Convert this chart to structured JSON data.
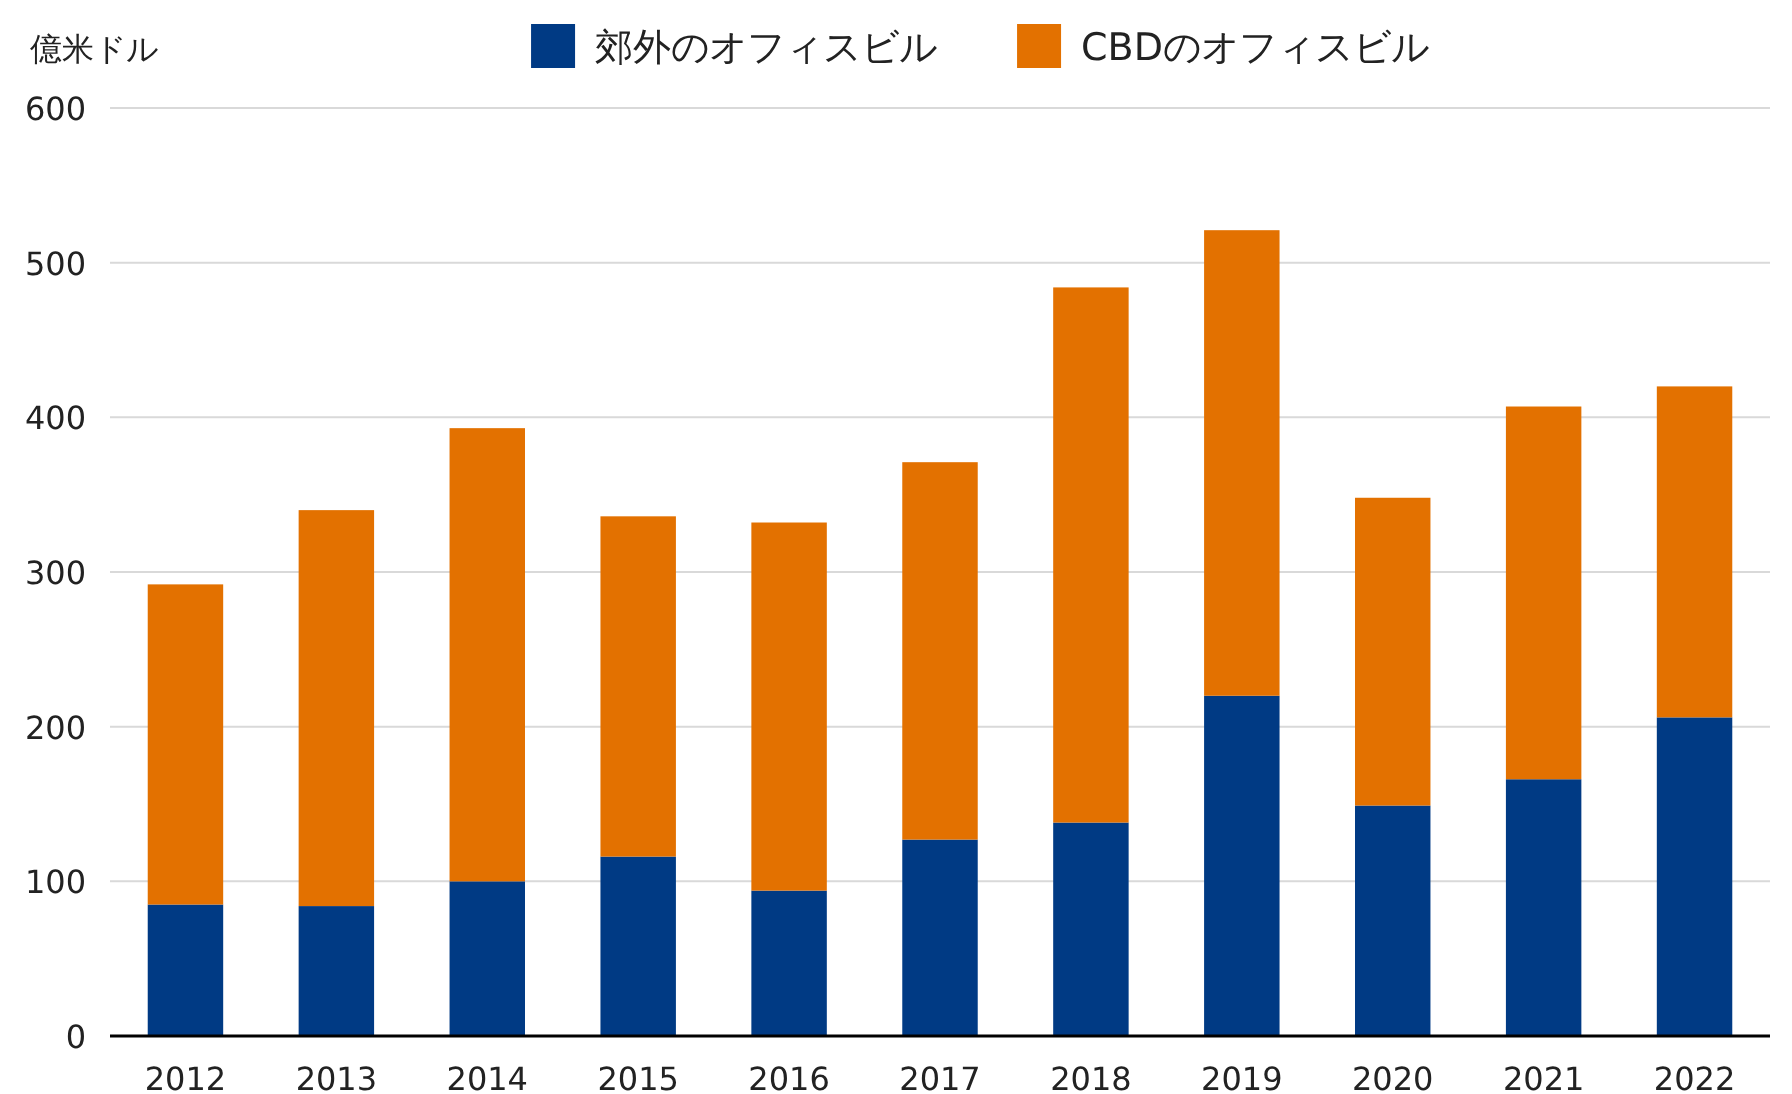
{
  "chart_data": {
    "type": "bar",
    "stacked": true,
    "ylabel": "億米ドル",
    "categories": [
      "2012",
      "2013",
      "2014",
      "2015",
      "2016",
      "2017",
      "2018",
      "2019",
      "2020",
      "2021",
      "2022"
    ],
    "series": [
      {
        "name": "郊外のオフィスビル",
        "color": "#003a84",
        "values": [
          85,
          84,
          100,
          116,
          94,
          127,
          138,
          220,
          149,
          166,
          206
        ]
      },
      {
        "name": "CBDのオフィスビル",
        "color": "#e37100",
        "values": [
          207,
          256,
          293,
          220,
          238,
          244,
          346,
          301,
          199,
          241,
          214
        ]
      }
    ],
    "ylim": [
      0,
      600
    ],
    "yticks": [
      0,
      100,
      200,
      300,
      400,
      500,
      600
    ],
    "grid": "y",
    "legend": "top"
  }
}
